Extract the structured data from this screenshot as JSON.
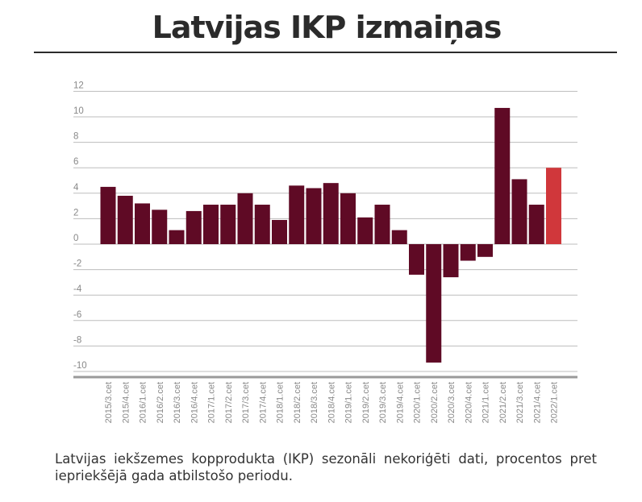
{
  "title": "Latvijas IKP izmaiņas",
  "caption": "Latvijas iekšzemes kopprodukta (IKP) sezonāli nekoriģēti dati, procentos pret iepriekšējā gada atbilstošo periodu.",
  "chart_data": {
    "type": "bar",
    "title": "Latvijas IKP izmaiņas",
    "xlabel": "",
    "ylabel": "",
    "ylim": [
      -10,
      12
    ],
    "yticks": [
      12,
      10,
      8,
      6,
      4,
      2,
      0,
      -2,
      -4,
      -6,
      -8,
      -10
    ],
    "grid": true,
    "categories": [
      "2015/3.cet",
      "2015/4.cet",
      "2016/1.cet",
      "2016/2.cet",
      "2016/3.cet",
      "2016/4.cet",
      "2017/1.cet",
      "2017/2.cet",
      "2017/3.cet",
      "2017/4.cet",
      "2018/1.cet",
      "2018/2.cet",
      "2018/3.cet",
      "2018/4.cet",
      "2019/1.cet",
      "2019/2.cet",
      "2019/3.cet",
      "2019/4.cet",
      "2020/1.cet",
      "2020/2.cet",
      "2020/3.cet",
      "2020/4.cet",
      "2021/1.cet",
      "2021/2.cet",
      "2021/3.cet",
      "2021/4.cet",
      "2022/1.cet"
    ],
    "values": [
      4.5,
      3.8,
      3.2,
      2.7,
      1.1,
      2.6,
      3.1,
      3.1,
      4.0,
      3.1,
      1.9,
      4.6,
      4.4,
      4.8,
      4.0,
      2.1,
      3.1,
      1.1,
      -2.4,
      -9.3,
      -2.6,
      -1.3,
      -1.0,
      10.7,
      5.1,
      3.1,
      6.0
    ],
    "colors": {
      "bar": "#5f0a25",
      "highlight": "#d0373b",
      "grid": "#bdbdbd",
      "axis": "#9a9a9a",
      "tick_text": "#888888"
    },
    "highlight_index": 26
  }
}
